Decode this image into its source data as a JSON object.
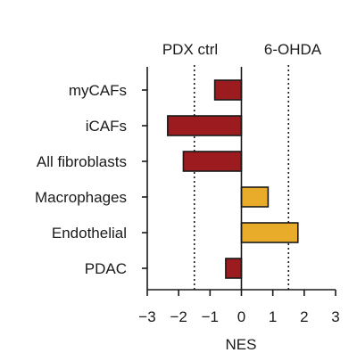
{
  "chart_data": {
    "type": "bar",
    "orientation": "horizontal",
    "categories": [
      "myCAFs",
      "iCAFs",
      "All fibroblasts",
      "Macrophages",
      "Endothelial",
      "PDAC"
    ],
    "values": [
      -0.85,
      -2.35,
      -1.85,
      0.85,
      1.8,
      -0.5
    ],
    "xlabel": "NES",
    "ylabel": "",
    "xlim": [
      -3,
      3
    ],
    "xticks": [
      -3,
      -2,
      -1,
      0,
      1,
      2,
      3
    ],
    "xtick_labels": [
      "−3",
      "−2",
      "−1",
      "0",
      "1",
      "2",
      "3"
    ],
    "reference_lines": [
      -1.5,
      1.5
    ],
    "annotations": [
      "PDX ctrl",
      "6-OHDA"
    ],
    "grid": false,
    "colors": {
      "negative": "#9b1b1f",
      "positive": "#e8ac2a",
      "axis": "#1a1a1a",
      "bar_edge": "#1a1a1a"
    }
  }
}
